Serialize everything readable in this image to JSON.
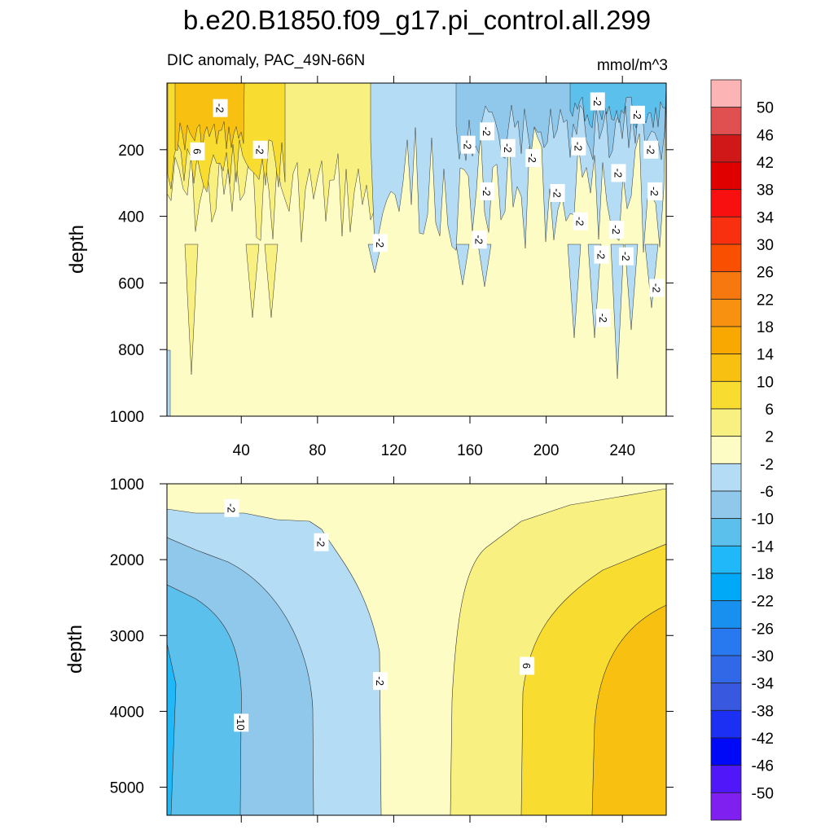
{
  "title": "b.e20.B1850.f09_g17.pi_control.all.299",
  "subtitle_left": "DIC anomaly, PAC_49N-66N",
  "subtitle_right": "mmol/m^3",
  "chart_data": [
    {
      "type": "contour",
      "panel": "upper",
      "xlabel": "",
      "ylabel": "depth",
      "xlim": [
        1,
        263
      ],
      "ylim": [
        0,
        1000
      ],
      "y_inverted": true,
      "x_ticks": [
        40,
        80,
        120,
        160,
        200,
        240
      ],
      "x_tick_labels": [
        "40",
        "80",
        "120",
        "160",
        "200",
        "240"
      ],
      "y_ticks": [
        200,
        400,
        600,
        800,
        1000
      ],
      "y_tick_labels": [
        "200",
        "400",
        "600",
        "800",
        "1000"
      ],
      "contour_labels": [
        {
          "text": "-2",
          "x": 29,
          "y": 75
        },
        {
          "text": "6",
          "x": 17,
          "y": 205
        },
        {
          "text": "-2",
          "x": 50,
          "y": 200
        },
        {
          "text": "-2",
          "x": 113,
          "y": 480
        },
        {
          "text": "-2",
          "x": 159,
          "y": 185
        },
        {
          "text": "-2",
          "x": 165,
          "y": 470
        },
        {
          "text": "-2",
          "x": 169,
          "y": 145
        },
        {
          "text": "-2",
          "x": 169,
          "y": 325
        },
        {
          "text": "-2",
          "x": 180,
          "y": 195
        },
        {
          "text": "-2",
          "x": 193,
          "y": 225
        },
        {
          "text": "-2",
          "x": 206,
          "y": 330
        },
        {
          "text": "-2",
          "x": 217,
          "y": 190
        },
        {
          "text": "-2",
          "x": 218,
          "y": 415
        },
        {
          "text": "-2",
          "x": 227,
          "y": 55
        },
        {
          "text": "-2",
          "x": 229,
          "y": 515
        },
        {
          "text": "-2",
          "x": 230,
          "y": 705
        },
        {
          "text": "-2",
          "x": 238,
          "y": 270
        },
        {
          "text": "-2",
          "x": 237,
          "y": 440
        },
        {
          "text": "-2",
          "x": 242,
          "y": 520
        },
        {
          "text": "-2",
          "x": 248,
          "y": 95
        },
        {
          "text": "-2",
          "x": 255,
          "y": 200
        },
        {
          "text": "-2",
          "x": 257,
          "y": 325
        },
        {
          "text": "-2",
          "x": 258,
          "y": 615
        }
      ]
    },
    {
      "type": "contour",
      "panel": "lower",
      "xlabel": "",
      "ylabel": "depth",
      "xlim": [
        1,
        263
      ],
      "ylim": [
        1000,
        5370
      ],
      "y_inverted": true,
      "x_ticks": [
        40,
        80,
        120,
        160,
        200,
        240
      ],
      "y_ticks": [
        1000,
        2000,
        3000,
        4000,
        5000
      ],
      "y_tick_labels": [
        "1000",
        "2000",
        "3000",
        "4000",
        "5000"
      ],
      "contour_labels": [
        {
          "text": "-2",
          "x": 35,
          "y": 1320
        },
        {
          "text": "-2",
          "x": 82,
          "y": 1770
        },
        {
          "text": "-2",
          "x": 113,
          "y": 3600
        },
        {
          "text": "-10",
          "x": 40,
          "y": 4150
        },
        {
          "text": "6",
          "x": 190,
          "y": 3400
        }
      ]
    }
  ],
  "colorbar": {
    "labels": [
      "50",
      "46",
      "42",
      "38",
      "34",
      "30",
      "26",
      "22",
      "18",
      "14",
      "10",
      "6",
      "2",
      "-2",
      "-6",
      "-10",
      "-14",
      "-18",
      "-22",
      "-26",
      "-30",
      "-34",
      "-38",
      "-42",
      "-46",
      "-50"
    ],
    "colors": [
      "#fcb4b4",
      "#e05050",
      "#d01818",
      "#e00000",
      "#f81010",
      "#f83010",
      "#f85000",
      "#f87810",
      "#f89010",
      "#f8a800",
      "#f8c010",
      "#f8dc30",
      "#f8f080",
      "#fcfcc4",
      "#b4dcf4",
      "#90c8ec",
      "#5cc0ec",
      "#20b8f8",
      "#00a8f8",
      "#1890f0",
      "#2878f0",
      "#3068e8",
      "#3858e0",
      "#1c30f4",
      "#0008f8",
      "#5018f8",
      "#8020f0"
    ]
  },
  "colors": {
    "c_pos2": "#fcfcc4",
    "c_pos6": "#f8f080",
    "c_pos10": "#f8dc30",
    "c_pos14": "#f8c010",
    "c_neg2": "#b4dcf4",
    "c_neg6": "#90c8ec",
    "c_neg10": "#5cc0ec",
    "c_neg14": "#20b8f8"
  }
}
